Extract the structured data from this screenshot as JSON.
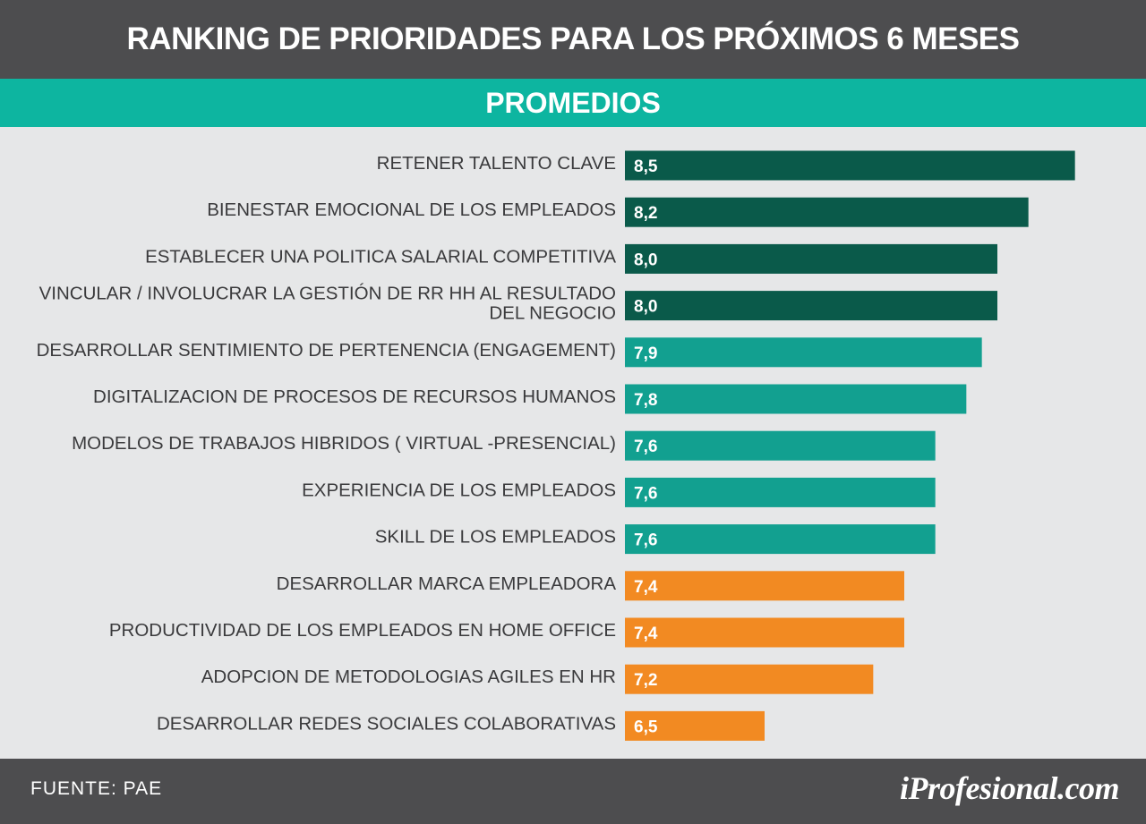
{
  "header": {
    "title": "RANKING DE PRIORIDADES PARA LOS PRÓXIMOS 6 MESES"
  },
  "subheader": {
    "title": "PROMEDIOS"
  },
  "footer": {
    "source": "FUENTE:  PAE",
    "logo_text": "iProfesional.com"
  },
  "colors": {
    "dark_green": "#0a5a4a",
    "teal": "#12a090",
    "orange": "#f28a22",
    "label_text": "#3a3a3c",
    "value_text": "#ffffff"
  },
  "chart_data": {
    "type": "bar",
    "orientation": "horizontal",
    "title": "RANKING DE PRIORIDADES PARA LOS PRÓXIMOS 6 MESES",
    "subtitle": "PROMEDIOS",
    "xlim": [
      5.6,
      8.6
    ],
    "grid": false,
    "categories": [
      [
        "RETENER TALENTO CLAVE"
      ],
      [
        "BIENESTAR EMOCIONAL DE LOS EMPLEADOS"
      ],
      [
        "ESTABLECER UNA POLITICA SALARIAL COMPETITIVA"
      ],
      [
        "VINCULAR / INVOLUCRAR  LA GESTIÓN DE RR HH AL RESULTADO",
        "DEL NEGOCIO"
      ],
      [
        "DESARROLLAR SENTIMIENTO DE PERTENENCIA (ENGAGEMENT)"
      ],
      [
        "DIGITALIZACION DE PROCESOS DE RECURSOS HUMANOS"
      ],
      [
        "MODELOS DE TRABAJOS HIBRIDOS ( VIRTUAL -PRESENCIAL)"
      ],
      [
        "EXPERIENCIA DE LOS EMPLEADOS"
      ],
      [
        "SKILL DE LOS EMPLEADOS"
      ],
      [
        "DESARROLLAR MARCA EMPLEADORA"
      ],
      [
        "PRODUCTIVIDAD DE LOS EMPLEADOS EN HOME OFFICE"
      ],
      [
        "ADOPCION DE METODOLOGIAS AGILES EN HR"
      ],
      [
        "DESARROLLAR REDES SOCIALES COLABORATIVAS"
      ]
    ],
    "values": [
      8.5,
      8.2,
      8.0,
      8.0,
      7.9,
      7.8,
      7.6,
      7.6,
      7.6,
      7.4,
      7.4,
      7.2,
      6.5
    ],
    "value_labels": [
      "8,5",
      "8,2",
      "8,0",
      "8,0",
      "7,9",
      "7,8",
      "7,6",
      "7,6",
      "7,6",
      "7,4",
      "7,4",
      "7,2",
      "6,5"
    ],
    "bar_colors": [
      "dark_green",
      "dark_green",
      "dark_green",
      "dark_green",
      "teal",
      "teal",
      "teal",
      "teal",
      "teal",
      "orange",
      "orange",
      "orange",
      "orange"
    ]
  }
}
